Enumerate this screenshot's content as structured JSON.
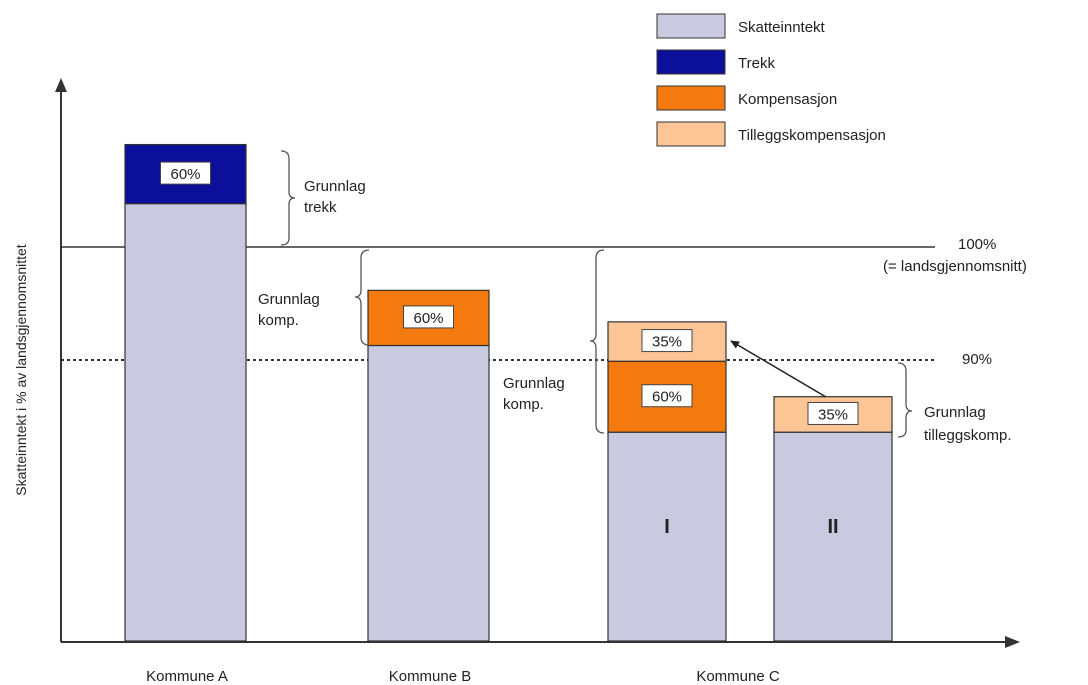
{
  "chart_data": {
    "type": "bar",
    "stacked": true,
    "ylabel": "Skatteinntekt i % av landsgjennomsnittet",
    "categories": [
      "Kommune A",
      "Kommune B",
      "Kommune C"
    ],
    "bars": [
      {
        "category": "Kommune A",
        "sublabel": "",
        "segments": [
          {
            "series": "Skatteinntekt",
            "from": 0,
            "to": 111,
            "label": ""
          },
          {
            "series": "Trekk",
            "from": 111,
            "to": 126,
            "label": "60%"
          }
        ]
      },
      {
        "category": "Kommune B",
        "sublabel": "",
        "segments": [
          {
            "series": "Skatteinntekt",
            "from": 0,
            "to": 75,
            "label": ""
          },
          {
            "series": "Kompensasjon",
            "from": 75,
            "to": 89,
            "label": "60%"
          }
        ]
      },
      {
        "category": "Kommune C",
        "sublabel": "I",
        "segments": [
          {
            "series": "Skatteinntekt",
            "from": 0,
            "to": 53,
            "label": ""
          },
          {
            "series": "Kompensasjon",
            "from": 53,
            "to": 71,
            "label": "60%"
          },
          {
            "series": "Tilleggskompensasjon",
            "from": 71,
            "to": 81,
            "label": "35%"
          }
        ]
      },
      {
        "category": "Kommune C",
        "sublabel": "II",
        "segments": [
          {
            "series": "Skatteinntekt",
            "from": 0,
            "to": 53,
            "label": ""
          },
          {
            "series": "Tilleggskompensasjon",
            "from": 53,
            "to": 62,
            "label": "35%"
          }
        ]
      }
    ],
    "reference_lines": [
      {
        "value": 100,
        "style": "solid",
        "label": "100%",
        "sublabel": "(= landsgjennomsnitt)"
      },
      {
        "value": 90,
        "style": "dotted",
        "label": "90%",
        "sublabel": ""
      }
    ],
    "annotations": [
      {
        "text": [
          "Grunnlag",
          "trekk"
        ]
      },
      {
        "text": [
          "Grunnlag",
          "komp."
        ]
      },
      {
        "text": [
          "Grunnlag",
          "komp."
        ]
      },
      {
        "text": [
          "Grunnlag",
          "tilleggskomp."
        ]
      }
    ],
    "legend": {
      "position": "top-right",
      "items": [
        {
          "name": "Skatteinntekt",
          "color": "#c9cadf"
        },
        {
          "name": "Trekk",
          "color": "#0c0f9a"
        },
        {
          "name": "Kompensasjon",
          "color": "#f47a10"
        },
        {
          "name": "Tilleggskompensasjon",
          "color": "#fbc595"
        }
      ]
    },
    "ylim": [
      0,
      140
    ]
  }
}
